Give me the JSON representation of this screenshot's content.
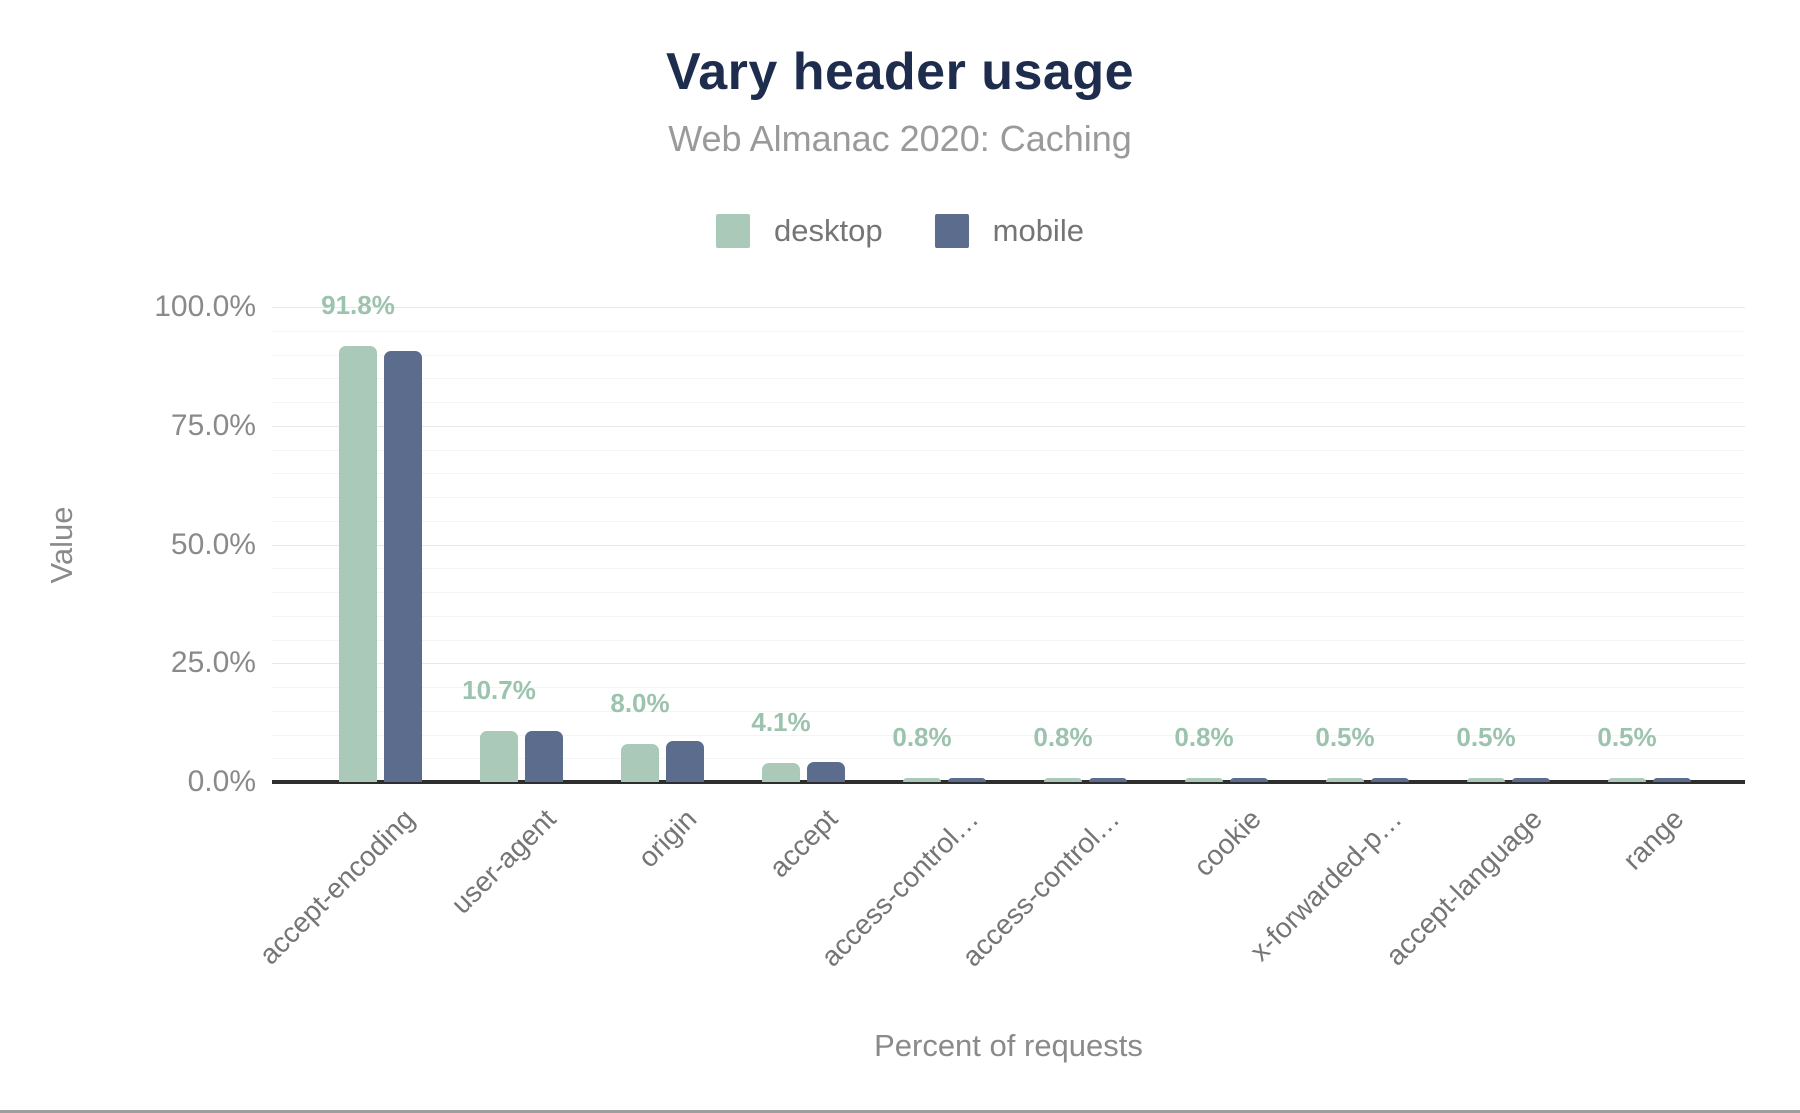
{
  "page": {
    "title": "Vary header usage",
    "subtitle": "Web Almanac 2020: Caching"
  },
  "legend": {
    "items": [
      {
        "label": "desktop",
        "color": "#aac9b8"
      },
      {
        "label": "mobile",
        "color": "#5c6c8c"
      }
    ]
  },
  "chart_data": {
    "type": "bar",
    "title": "Vary header usage",
    "subtitle": "Web Almanac 2020: Caching",
    "categories": [
      "accept-encoding",
      "user-agent",
      "origin",
      "accept",
      "access-control…",
      "access-control…",
      "cookie",
      "x-forwarded-p…",
      "accept-language",
      "range"
    ],
    "series": [
      {
        "name": "desktop",
        "color": "#aac9b8",
        "values": [
          91.8,
          10.7,
          8.0,
          4.1,
          0.8,
          0.8,
          0.8,
          0.5,
          0.5,
          0.5
        ]
      },
      {
        "name": "mobile",
        "color": "#5c6c8c",
        "values": [
          90.7,
          10.8,
          8.6,
          4.2,
          0.9,
          0.9,
          0.9,
          0.6,
          0.6,
          0.6
        ]
      }
    ],
    "bar_labels": [
      "91.8%",
      "10.7%",
      "8.0%",
      "4.1%",
      "0.8%",
      "0.8%",
      "0.8%",
      "0.5%",
      "0.5%",
      "0.5%"
    ],
    "bar_label_color": "#9cc3ad",
    "xlabel": "Percent of requests",
    "ylabel": "Value",
    "ylim": [
      0,
      100
    ],
    "y_ticks": [
      {
        "label": "0.0%",
        "value": 0
      },
      {
        "label": "25.0%",
        "value": 25
      },
      {
        "label": "50.0%",
        "value": 50
      },
      {
        "label": "75.0%",
        "value": 75
      },
      {
        "label": "100.0%",
        "value": 100
      }
    ],
    "grid": {
      "major_every": 25,
      "minor_every": 5
    },
    "legend_position": "top",
    "colors": {
      "title": "#1e2d4d",
      "subtitle": "#9a9a9a",
      "axis_text": "#8a8a8a",
      "category_text": "#757575",
      "baseline": "#2e2e2e"
    }
  }
}
